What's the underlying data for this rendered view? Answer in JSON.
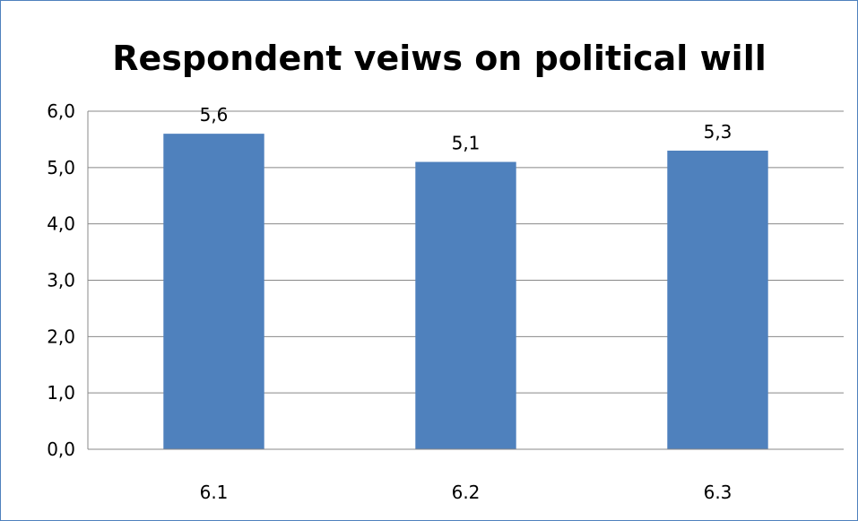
{
  "chart_data": {
    "type": "bar",
    "title": "Respondent veiws on political will",
    "categories": [
      "6.1",
      "6.2",
      "6.3"
    ],
    "values": [
      5.6,
      5.1,
      5.3
    ],
    "value_labels": [
      "5,6",
      "5,1",
      "5,3"
    ],
    "yticks": [
      "0,0",
      "1,0",
      "2,0",
      "3,0",
      "4,0",
      "5,0",
      "6,0"
    ],
    "ylim": [
      0,
      6
    ],
    "xlabel": "",
    "ylabel": "",
    "grid": true,
    "legend": "none",
    "bar_color": "#4f81bd",
    "grid_color": "#888888"
  }
}
